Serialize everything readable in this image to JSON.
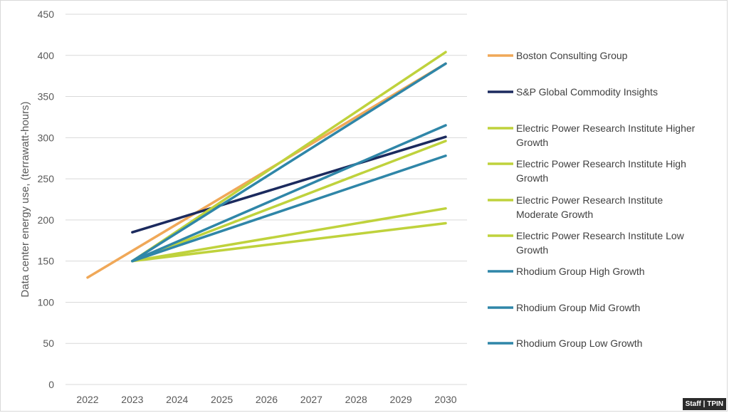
{
  "chart_data": {
    "type": "line",
    "title": "",
    "xlabel": "",
    "ylabel": "Data center energy use, (terrawatt-hours)",
    "x": [
      2022,
      2023,
      2024,
      2025,
      2026,
      2027,
      2028,
      2029,
      2030
    ],
    "xlim": [
      2022,
      2030
    ],
    "ylim": [
      0,
      450
    ],
    "yticks": [
      0,
      50,
      100,
      150,
      200,
      250,
      300,
      350,
      400,
      450
    ],
    "grid": true,
    "legend_position": "right",
    "series": [
      {
        "name": "Boston Consulting Group",
        "color": "#F0A858",
        "points": [
          [
            2022,
            130
          ],
          [
            2030,
            390
          ]
        ]
      },
      {
        "name": "S&P Global Commodity Insights",
        "color": "#1B2A5E",
        "points": [
          [
            2023,
            185
          ],
          [
            2030,
            301
          ]
        ]
      },
      {
        "name": "Electric Power Research Institute Higher Growth",
        "color": "#BFD23C",
        "points": [
          [
            2023,
            150
          ],
          [
            2030,
            404
          ]
        ]
      },
      {
        "name": "Electric Power Research Institute High Growth",
        "color": "#BFD23C",
        "points": [
          [
            2023,
            150
          ],
          [
            2030,
            296
          ]
        ]
      },
      {
        "name": "Electric Power Research Institute Moderate Growth",
        "color": "#BFD23C",
        "points": [
          [
            2023,
            150
          ],
          [
            2030,
            214
          ]
        ]
      },
      {
        "name": "Electric Power Research Institute Low Growth",
        "color": "#BFD23C",
        "points": [
          [
            2023,
            150
          ],
          [
            2030,
            196
          ]
        ]
      },
      {
        "name": "Rhodium Group High Growth",
        "color": "#2F86A8",
        "points": [
          [
            2023,
            150
          ],
          [
            2030,
            390
          ]
        ]
      },
      {
        "name": "Rhodium Group Mid Growth",
        "color": "#2F86A8",
        "points": [
          [
            2023,
            150
          ],
          [
            2030,
            315
          ]
        ]
      },
      {
        "name": "Rhodium Group Low Growth",
        "color": "#2F86A8",
        "points": [
          [
            2023,
            150
          ],
          [
            2030,
            278
          ]
        ]
      }
    ]
  },
  "credit": "Staff | TPIN"
}
